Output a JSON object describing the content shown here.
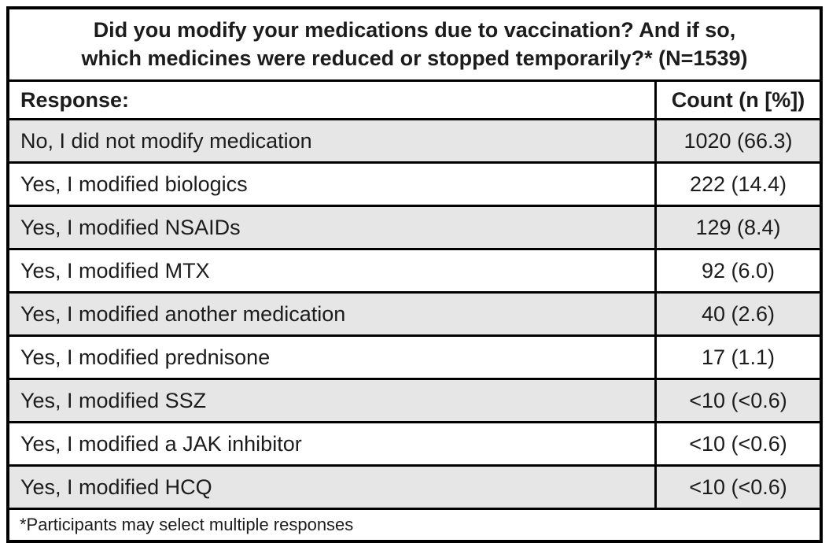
{
  "table": {
    "title_line1": "Did you modify your medications due to vaccination? And if so,",
    "title_line2": "which medicines were reduced or stopped temporarily?* (N=1539)",
    "columns": {
      "response": "Response:",
      "count": "Count (n [%])"
    },
    "rows": [
      {
        "response": "No, I did not modify medication",
        "count": "1020 (66.3)"
      },
      {
        "response": "Yes, I modified biologics",
        "count": "222 (14.4)"
      },
      {
        "response": "Yes, I modified NSAIDs",
        "count": "129 (8.4)"
      },
      {
        "response": "Yes, I modified MTX",
        "count": "92 (6.0)"
      },
      {
        "response": "Yes, I modified another medication",
        "count": "40 (2.6)"
      },
      {
        "response": "Yes, I modified prednisone",
        "count": "17 (1.1)"
      },
      {
        "response": "Yes, I modified SSZ",
        "count": "<10 (<0.6)"
      },
      {
        "response": "Yes, I modified a JAK inhibitor",
        "count": "<10 (<0.6)"
      },
      {
        "response": "Yes, I modified HCQ",
        "count": "<10 (<0.6)"
      }
    ],
    "footnote": "*Participants may select multiple responses",
    "total_n": "1539",
    "colors": {
      "border": "#000000",
      "row_alt_background": "#e6e6e6",
      "row_background": "#ffffff",
      "text": "#1c1c1c"
    }
  },
  "chart_data": {
    "type": "table",
    "title": "Did you modify your medications due to vaccination? And if so, which medicines were reduced or stopped temporarily?* (N=1539)",
    "columns": [
      "Response:",
      "Count (n [%])"
    ],
    "rows": [
      [
        "No, I did not modify medication",
        "1020 (66.3)"
      ],
      [
        "Yes, I modified biologics",
        "222 (14.4)"
      ],
      [
        "Yes, I modified NSAIDs",
        "129 (8.4)"
      ],
      [
        "Yes, I modified MTX",
        "92 (6.0)"
      ],
      [
        "Yes, I modified another medication",
        "40 (2.6)"
      ],
      [
        "Yes, I modified prednisone",
        "17 (1.1)"
      ],
      [
        "Yes, I modified SSZ",
        "<10 (<0.6)"
      ],
      [
        "Yes, I modified a JAK inhibitor",
        "<10 (<0.6)"
      ],
      [
        "Yes, I modified HCQ",
        "<10 (<0.6)"
      ]
    ],
    "counts_n": [
      1020,
      222,
      129,
      92,
      40,
      17,
      null,
      null,
      null
    ],
    "percents": [
      66.3,
      14.4,
      8.4,
      6.0,
      2.6,
      1.1,
      null,
      null,
      null
    ],
    "suppressed_value_label": "<10 (<0.6)",
    "total_n": 1539,
    "footnote": "*Participants may select multiple responses"
  }
}
